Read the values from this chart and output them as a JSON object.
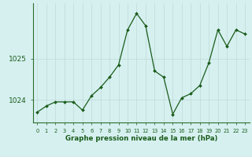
{
  "x": [
    0,
    1,
    2,
    3,
    4,
    5,
    6,
    7,
    8,
    9,
    10,
    11,
    12,
    13,
    14,
    15,
    16,
    17,
    18,
    19,
    20,
    21,
    22,
    23
  ],
  "y": [
    1023.7,
    1023.85,
    1023.95,
    1023.95,
    1023.95,
    1023.75,
    1024.1,
    1024.3,
    1024.55,
    1024.85,
    1025.7,
    1026.1,
    1025.8,
    1024.7,
    1024.55,
    1023.65,
    1024.05,
    1024.15,
    1024.35,
    1024.9,
    1025.7,
    1025.3,
    1025.7,
    1025.6
  ],
  "line_color": "#1a5c1a",
  "marker_color": "#1a5c1a",
  "bg_color": "#d6f0f0",
  "grid_color_v": "#c0d8d8",
  "grid_color_h": "#c0d8d8",
  "border_color": "#2d6e2d",
  "xlabel": "Graphe pression niveau de la mer (hPa)",
  "xlabel_color": "#1a5c1a",
  "tick_color": "#1a5c1a",
  "yticks": [
    1024,
    1025
  ],
  "ylim": [
    1023.45,
    1026.35
  ],
  "xlim": [
    -0.5,
    23.5
  ],
  "xtick_labels": [
    "0",
    "1",
    "2",
    "3",
    "4",
    "5",
    "6",
    "7",
    "8",
    "9",
    "10",
    "11",
    "12",
    "13",
    "14",
    "15",
    "16",
    "17",
    "18",
    "19",
    "20",
    "21",
    "22",
    "23"
  ]
}
